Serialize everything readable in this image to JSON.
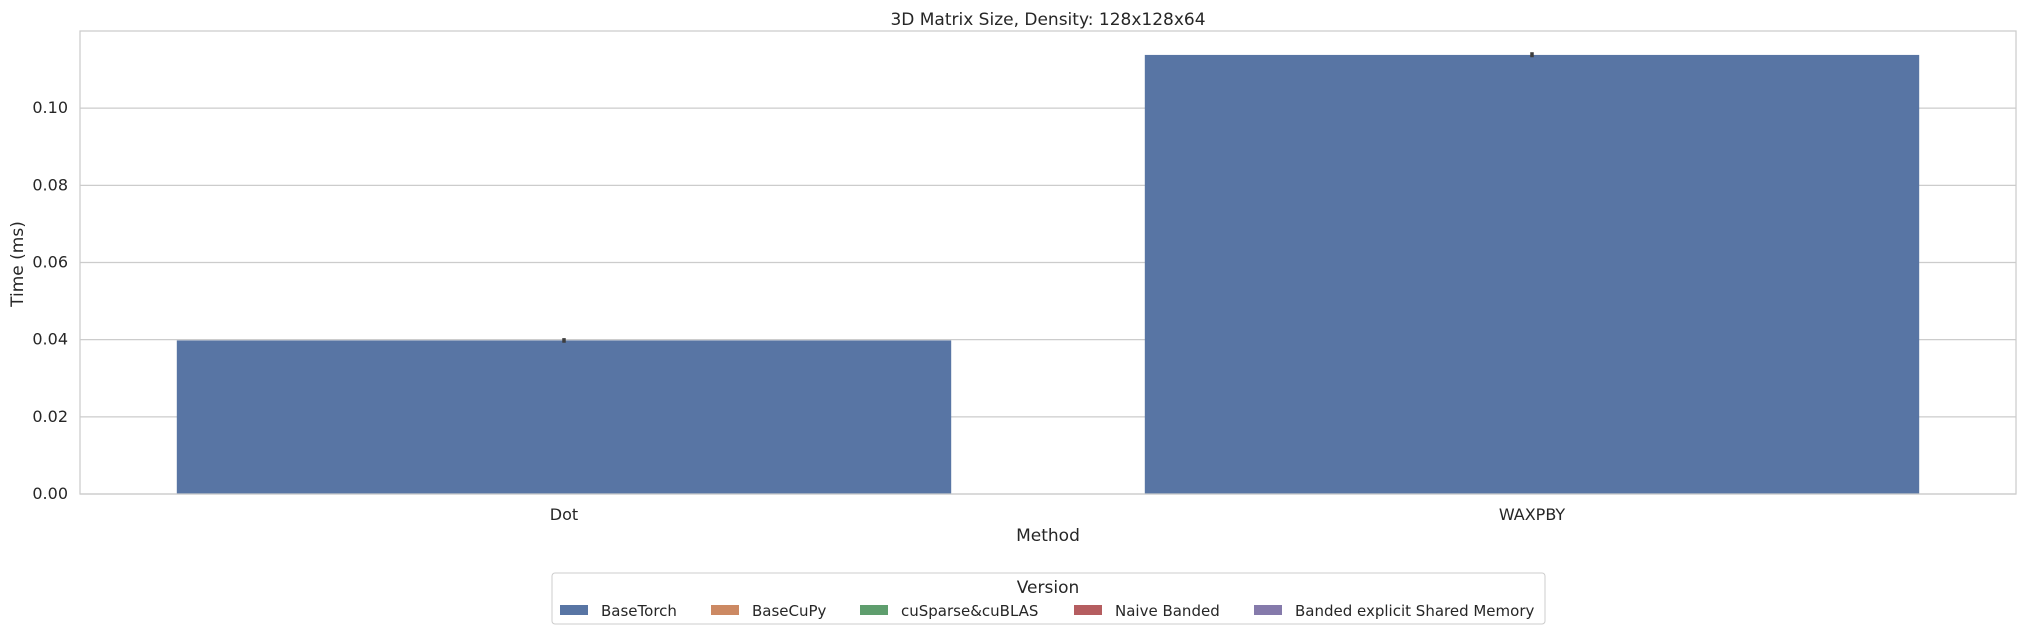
{
  "chart_data": {
    "type": "bar",
    "title": "3D Matrix Size, Density: 128x128x64",
    "xlabel": "Method",
    "ylabel": "Time (ms)",
    "categories": [
      "Dot",
      "WAXPBY"
    ],
    "ylim": [
      0,
      0.12
    ],
    "yticks": [
      0.0,
      0.02,
      0.04,
      0.06,
      0.08,
      0.1
    ],
    "ytick_labels": [
      "0.00",
      "0.02",
      "0.04",
      "0.06",
      "0.08",
      "0.10"
    ],
    "grid": true,
    "legend": {
      "title": "Version",
      "placement": "bottom-center",
      "entries": [
        {
          "name": "BaseTorch",
          "color": "#5875a4"
        },
        {
          "name": "BaseCuPy",
          "color": "#cc8963"
        },
        {
          "name": "cuSparse&cuBLAS",
          "color": "#5f9e6e"
        },
        {
          "name": "Naive Banded",
          "color": "#b55d60"
        },
        {
          "name": "Banded explicit Shared Memory",
          "color": "#857aab"
        }
      ]
    },
    "series": [
      {
        "name": "BaseTorch",
        "color": "#5875a4",
        "values": [
          0.0398,
          0.1138
        ],
        "error_low": [
          0.0392,
          0.1132
        ],
        "error_high": [
          0.0404,
          0.1145
        ]
      },
      {
        "name": "BaseCuPy",
        "color": "#cc8963",
        "values": [
          null,
          null
        ]
      },
      {
        "name": "cuSparse&cuBLAS",
        "color": "#5f9e6e",
        "values": [
          null,
          null
        ]
      },
      {
        "name": "Naive Banded",
        "color": "#b55d60",
        "values": [
          null,
          null
        ]
      },
      {
        "name": "Banded explicit Shared Memory",
        "color": "#857aab",
        "values": [
          null,
          null
        ]
      }
    ]
  }
}
